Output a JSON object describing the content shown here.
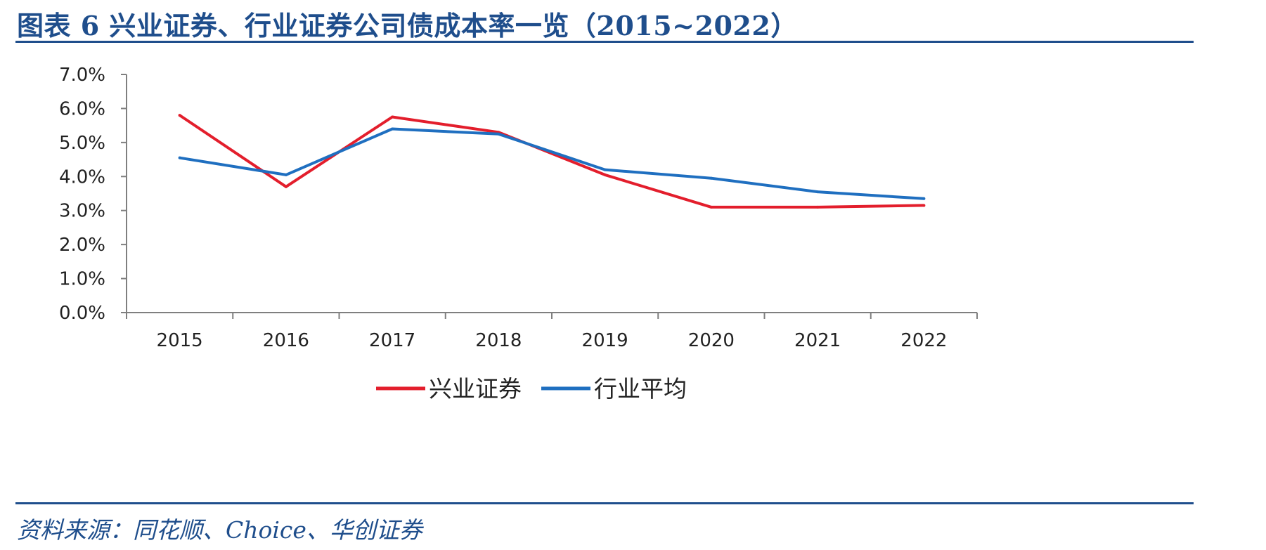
{
  "title": "图表 6 兴业证券、行业证券公司债成本率一览（2015~2022）",
  "source": "资料来源：同花顺、Choice、华创证券",
  "colors": {
    "header": "#1F4E8C",
    "series_1": "#E31E2C",
    "series_2": "#1F6FC0"
  },
  "chart_data": {
    "type": "line",
    "title": "",
    "xlabel": "",
    "ylabel": "",
    "categories": [
      "2015",
      "2016",
      "2017",
      "2018",
      "2019",
      "2020",
      "2021",
      "2022"
    ],
    "y_tick_labels": [
      "0.0%",
      "1.0%",
      "2.0%",
      "3.0%",
      "4.0%",
      "5.0%",
      "6.0%",
      "7.0%"
    ],
    "ylim": [
      0,
      7
    ],
    "y_unit": "%",
    "grid": false,
    "legend_position": "bottom",
    "series": [
      {
        "name": "兴业证券",
        "color": "#E31E2C",
        "values": [
          5.8,
          3.7,
          5.75,
          5.3,
          4.05,
          3.1,
          3.1,
          3.15
        ]
      },
      {
        "name": "行业平均",
        "color": "#1F6FC0",
        "values": [
          4.55,
          4.05,
          5.4,
          5.25,
          4.2,
          3.95,
          3.55,
          3.35
        ]
      }
    ]
  }
}
